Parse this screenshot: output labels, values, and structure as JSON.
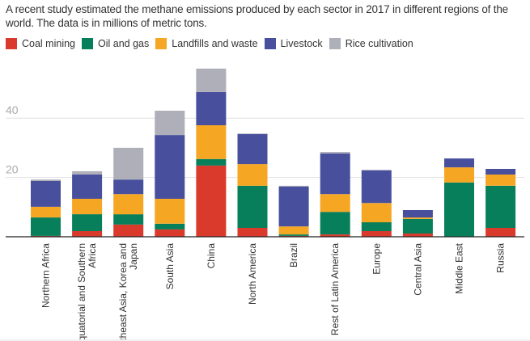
{
  "title": "A recent study estimated the methane emissions produced by each sector in 2017 in different regions of the world. The data is in millions of metric tons.",
  "chart_data": {
    "type": "bar",
    "stacked": true,
    "title": "A recent study estimated the methane emissions produced by each sector in 2017 in different regions of the world. The data is in millions of metric tons.",
    "xlabel": "",
    "ylabel": "",
    "ylim": [
      0,
      60
    ],
    "yticks": [
      20,
      40
    ],
    "grid": true,
    "legend_position": "top-left",
    "categories": [
      "Northern Africa",
      "Equatorial and Southern Africa",
      "Southeast Asia, Korea and Japan",
      "South Asia",
      "China",
      "North America",
      "Brazil",
      "Rest of Latin America",
      "Europe",
      "Central Asia",
      "Middle East",
      "Russia"
    ],
    "series": [
      {
        "name": "Coal mining",
        "color": "#d93a2b",
        "values": [
          0.3,
          1.9,
          4.1,
          2.5,
          24.0,
          3.0,
          0.3,
          0.8,
          1.9,
          1.1,
          0.0,
          3.0
        ]
      },
      {
        "name": "Oil and gas",
        "color": "#077f5a",
        "values": [
          6.2,
          5.7,
          3.5,
          1.9,
          2.2,
          14.2,
          0.5,
          7.6,
          3.0,
          4.9,
          18.3,
          14.2
        ]
      },
      {
        "name": "Landfills and waste",
        "color": "#f5a623",
        "values": [
          3.6,
          5.2,
          6.8,
          8.4,
          11.4,
          7.3,
          2.7,
          6.0,
          6.5,
          0.5,
          5.1,
          3.8
        ]
      },
      {
        "name": "Livestock",
        "color": "#48509e",
        "values": [
          8.7,
          8.2,
          4.9,
          21.5,
          11.2,
          10.1,
          13.4,
          13.7,
          11.0,
          2.5,
          3.0,
          1.9
        ]
      },
      {
        "name": "Rice cultivation",
        "color": "#aeafb9",
        "values": [
          0.5,
          1.1,
          10.7,
          8.2,
          7.9,
          0.2,
          0.3,
          0.5,
          0.2,
          0.0,
          0.0,
          0.0
        ]
      }
    ]
  }
}
